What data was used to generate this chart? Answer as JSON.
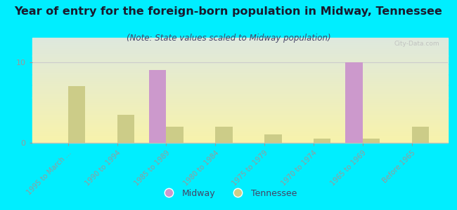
{
  "title": "Year of entry for the foreign-born population in Midway, Tennessee",
  "subtitle": "(Note: State values scaled to Midway population)",
  "categories": [
    "1995 to March ...",
    "1990 to 1994",
    "1985 to 1989",
    "1980 to 1984",
    "1975 to 1979",
    "1970 to 1974",
    "1965 to 1969",
    "Before 1965"
  ],
  "midway_values": [
    0,
    0,
    9,
    0,
    0,
    0,
    10,
    0
  ],
  "tennessee_values": [
    7,
    3.5,
    2,
    2,
    1,
    0.5,
    0.5,
    2
  ],
  "midway_color": "#cc99cc",
  "tennessee_color": "#cccc88",
  "background_color": "#00eeff",
  "ylim": [
    0,
    13
  ],
  "yticks": [
    0,
    10
  ],
  "bar_width": 0.35,
  "title_fontsize": 11.5,
  "subtitle_fontsize": 8.5,
  "legend_fontsize": 9,
  "watermark": "City-Data.com"
}
